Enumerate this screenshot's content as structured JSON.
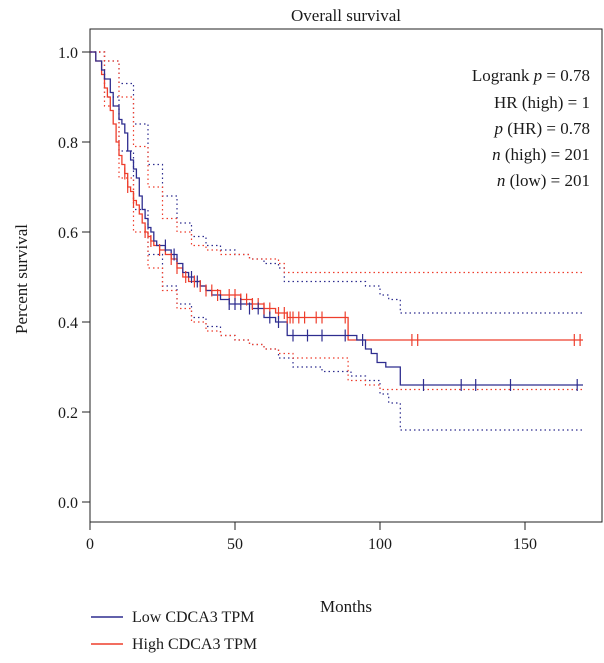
{
  "chart_data": {
    "type": "line",
    "title": "Overall survival",
    "xlabel": "Months",
    "ylabel": "Percent survival",
    "xlim": [
      0,
      170
    ],
    "ylim": [
      0,
      1.0
    ],
    "xticks": [
      0,
      50,
      100,
      150
    ],
    "yticks": [
      0.0,
      0.2,
      0.4,
      0.6,
      0.8,
      1.0
    ],
    "xtick_labels": [
      "0",
      "50",
      "100",
      "150"
    ],
    "ytick_labels": [
      "0.0",
      "0.2",
      "0.4",
      "0.6",
      "0.8",
      "1.0"
    ],
    "grid": false,
    "legend_position": "bottom-left",
    "annotations": [
      {
        "italic": "",
        "text": "Logrank p = 0.78",
        "pre": "Logrank ",
        "var": "p",
        "post": " = 0.78"
      },
      {
        "text": "HR (high) = 1",
        "pre": "HR (high) = 1",
        "var": "",
        "post": ""
      },
      {
        "text": "p (HR) = 0.78",
        "pre": "",
        "var": "p",
        "post": " (HR) = 0.78"
      },
      {
        "text": "n (high) = 201",
        "pre": "",
        "var": "n",
        "post": " (high) = 201"
      },
      {
        "text": "n (low) = 201",
        "pre": "",
        "var": "n",
        "post": " (low) = 201"
      }
    ],
    "series": [
      {
        "name": "Low CDCA3 TPM",
        "color": "#2e2d8f",
        "x": [
          0,
          2,
          4,
          5,
          7,
          8,
          10,
          11,
          12,
          13,
          14,
          15,
          16,
          17,
          18,
          19,
          20,
          21,
          22,
          23,
          24,
          26,
          28,
          30,
          32,
          34,
          36,
          38,
          40,
          42,
          45,
          48,
          52,
          56,
          60,
          64,
          68,
          72,
          80,
          88,
          92,
          95,
          97,
          99,
          102,
          104,
          107,
          120,
          130,
          145,
          160,
          170
        ],
        "y": [
          1.0,
          0.98,
          0.96,
          0.94,
          0.91,
          0.88,
          0.85,
          0.84,
          0.82,
          0.78,
          0.76,
          0.74,
          0.72,
          0.68,
          0.65,
          0.63,
          0.61,
          0.6,
          0.58,
          0.57,
          0.57,
          0.56,
          0.55,
          0.53,
          0.51,
          0.5,
          0.49,
          0.48,
          0.47,
          0.46,
          0.45,
          0.44,
          0.44,
          0.43,
          0.41,
          0.4,
          0.37,
          0.37,
          0.37,
          0.37,
          0.36,
          0.34,
          0.33,
          0.31,
          0.3,
          0.3,
          0.26,
          0.26,
          0.26,
          0.26,
          0.26,
          0.26
        ],
        "ci_upper_x": [
          0,
          5,
          10,
          15,
          20,
          25,
          30,
          35,
          40,
          45,
          50,
          55,
          60,
          65,
          67,
          75,
          85,
          95,
          100,
          103,
          107,
          120,
          140,
          160,
          170
        ],
        "ci_upper_y": [
          1.0,
          0.98,
          0.93,
          0.84,
          0.75,
          0.68,
          0.62,
          0.59,
          0.57,
          0.56,
          0.55,
          0.54,
          0.53,
          0.52,
          0.49,
          0.49,
          0.49,
          0.48,
          0.46,
          0.45,
          0.42,
          0.42,
          0.42,
          0.42,
          0.42
        ],
        "ci_lower_x": [
          0,
          5,
          10,
          15,
          20,
          25,
          30,
          35,
          40,
          45,
          50,
          55,
          60,
          65,
          70,
          80,
          90,
          95,
          100,
          103,
          107,
          120,
          140,
          160,
          170
        ],
        "ci_lower_y": [
          1.0,
          0.9,
          0.78,
          0.65,
          0.55,
          0.48,
          0.44,
          0.41,
          0.39,
          0.37,
          0.36,
          0.35,
          0.34,
          0.32,
          0.3,
          0.29,
          0.28,
          0.27,
          0.24,
          0.22,
          0.16,
          0.16,
          0.16,
          0.16,
          0.16
        ],
        "censored_x": [
          26,
          29,
          35,
          37,
          48,
          50,
          52,
          55,
          58,
          62,
          65,
          70,
          75,
          80,
          88,
          94,
          115,
          128,
          133,
          145,
          168
        ],
        "censored_y": [
          0.57,
          0.55,
          0.5,
          0.49,
          0.44,
          0.44,
          0.44,
          0.43,
          0.43,
          0.41,
          0.4,
          0.37,
          0.37,
          0.37,
          0.37,
          0.36,
          0.26,
          0.26,
          0.26,
          0.26,
          0.26
        ]
      },
      {
        "name": "High CDCA3 TPM",
        "color": "#ee3e2c",
        "x": [
          0,
          2,
          4,
          5,
          6,
          7,
          8,
          9,
          10,
          11,
          12,
          13,
          14,
          15,
          16,
          17,
          18,
          19,
          20,
          21,
          22,
          24,
          26,
          28,
          30,
          32,
          34,
          36,
          38,
          40,
          42,
          45,
          48,
          52,
          56,
          60,
          64,
          68,
          80,
          88,
          89,
          100,
          120,
          140,
          170
        ],
        "y": [
          1.0,
          0.98,
          0.95,
          0.92,
          0.9,
          0.87,
          0.84,
          0.8,
          0.77,
          0.75,
          0.73,
          0.7,
          0.69,
          0.67,
          0.66,
          0.64,
          0.62,
          0.6,
          0.59,
          0.58,
          0.57,
          0.56,
          0.55,
          0.54,
          0.52,
          0.5,
          0.49,
          0.49,
          0.48,
          0.47,
          0.47,
          0.46,
          0.46,
          0.45,
          0.44,
          0.43,
          0.42,
          0.41,
          0.41,
          0.41,
          0.36,
          0.36,
          0.36,
          0.36,
          0.36
        ],
        "ci_upper_x": [
          0,
          5,
          10,
          15,
          20,
          25,
          30,
          35,
          40,
          45,
          50,
          55,
          60,
          65,
          67,
          75,
          89,
          100,
          130,
          170
        ],
        "ci_upper_y": [
          1.0,
          0.98,
          0.9,
          0.79,
          0.7,
          0.63,
          0.6,
          0.57,
          0.56,
          0.55,
          0.55,
          0.54,
          0.54,
          0.53,
          0.51,
          0.51,
          0.51,
          0.51,
          0.51,
          0.51
        ],
        "ci_lower_x": [
          0,
          5,
          10,
          15,
          20,
          25,
          30,
          35,
          40,
          45,
          50,
          55,
          60,
          65,
          70,
          80,
          89,
          95,
          100,
          130,
          170
        ],
        "ci_lower_y": [
          1.0,
          0.88,
          0.72,
          0.6,
          0.52,
          0.47,
          0.43,
          0.4,
          0.38,
          0.37,
          0.36,
          0.35,
          0.34,
          0.33,
          0.32,
          0.32,
          0.27,
          0.26,
          0.25,
          0.25,
          0.25
        ],
        "censored_x": [
          12,
          13,
          15,
          19,
          21,
          24,
          28,
          30,
          33,
          36,
          38,
          40,
          42,
          44,
          48,
          50,
          52,
          54,
          56,
          58,
          60,
          62,
          65,
          67,
          68,
          69,
          70,
          72,
          74,
          78,
          80,
          88,
          111,
          113,
          167,
          169
        ],
        "censored_y": [
          0.73,
          0.7,
          0.67,
          0.6,
          0.58,
          0.56,
          0.54,
          0.52,
          0.5,
          0.49,
          0.48,
          0.47,
          0.47,
          0.46,
          0.46,
          0.46,
          0.45,
          0.45,
          0.44,
          0.44,
          0.43,
          0.43,
          0.42,
          0.42,
          0.41,
          0.41,
          0.41,
          0.41,
          0.41,
          0.41,
          0.41,
          0.41,
          0.36,
          0.36,
          0.36,
          0.36
        ]
      }
    ]
  }
}
